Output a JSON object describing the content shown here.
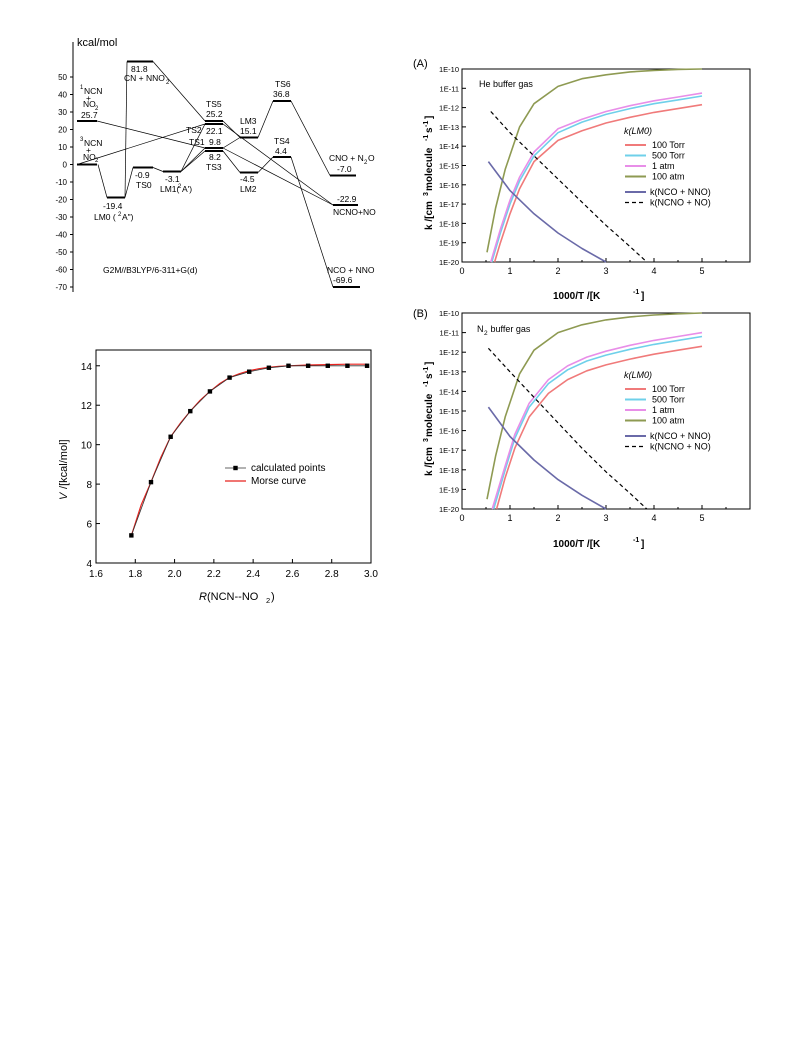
{
  "chart_data": [
    {
      "type": "energy-diagram",
      "ylabel": "kcal/mol",
      "yticks": [
        "50",
        "40",
        "30",
        "20",
        "10",
        "0",
        "-10",
        "-20",
        "-30",
        "-40",
        "-50",
        "-60",
        "-70"
      ],
      "method": "G2M//B3LYP/6-311+G(d)",
      "states": [
        {
          "label": "CN + NNO2",
          "energy": 81.8,
          "value_text": "81.8",
          "label_text": "CN + NNO",
          "label_sub": "2"
        },
        {
          "label": "1NCN + NO2",
          "energy": 25.7,
          "value_text": "25.7"
        },
        {
          "label": "3NCN + NO2",
          "energy": 0.0
        },
        {
          "label": "LM0 (2A\")",
          "energy": -19.4,
          "value_text": "-19.4",
          "label_text": "LM0 (",
          "label_sup": "2",
          "label_tail": "A\")"
        },
        {
          "label": "TS0",
          "energy": -0.9,
          "value_text": "-0.9"
        },
        {
          "label": "LM1(2A')",
          "energy": -3.1,
          "value_text": "-3.1",
          "label_text": "LM1(",
          "label_sup": "2",
          "label_tail": "A')"
        },
        {
          "label": "TS5",
          "energy": 25.2,
          "value_text": "25.2"
        },
        {
          "label": "TS2",
          "energy": 22.1,
          "value_text": "22.1"
        },
        {
          "label": "TS1",
          "energy": 9.8,
          "value_text": "9.8"
        },
        {
          "label": "TS3",
          "energy": 8.2,
          "value_text": "8.2"
        },
        {
          "label": "LM3",
          "energy": 15.1,
          "value_text": "15.1"
        },
        {
          "label": "LM2",
          "energy": -4.5,
          "value_text": "-4.5"
        },
        {
          "label": "TS6",
          "energy": 36.8,
          "value_text": "36.8"
        },
        {
          "label": "TS4",
          "energy": 4.4,
          "value_text": "4.4"
        },
        {
          "label": "CNO + N2O",
          "energy": -7.0,
          "value_text": "-7.0",
          "label_text": "CNO + N",
          "label_sub": "2",
          "label_tail": "O"
        },
        {
          "label": "NCNO+NO",
          "energy": -22.9,
          "value_text": "-22.9"
        },
        {
          "label": "NCO + NNO",
          "energy": -69.6,
          "value_text": "-69.6"
        }
      ],
      "reactant_labels": {
        "singlet": {
          "sup": "1",
          "line1": "NCN",
          "plus": "+",
          "line2": "NO",
          "sub": "2"
        },
        "triplet": {
          "sup": "3",
          "line1": "NCN",
          "plus": "+",
          "line2": "NO",
          "sub": "2"
        }
      }
    },
    {
      "type": "line",
      "panel": "(A)",
      "annotation": "He buffer gas",
      "xlabel": "1000/T  /[K",
      "xlabel_sup": "-1",
      "xlabel_tail": "]",
      "ylabel": "k /[cm",
      "ylabel_sup1": "3",
      "ylabel_mid": "molecule",
      "ylabel_sup2": "-1",
      "ylabel_s": "s",
      "ylabel_sup3": "-1",
      "ylabel_tail": "]",
      "xlim": [
        0,
        6
      ],
      "xticks": [
        "0",
        "1",
        "2",
        "3",
        "4",
        "5"
      ],
      "ylog": true,
      "yticks": [
        "1E-10",
        "1E-11",
        "1E-12",
        "1E-13",
        "1E-14",
        "1E-15",
        "1E-16",
        "1E-17",
        "1E-18",
        "1E-19",
        "1E-20"
      ],
      "legend_title": "k(LM0)",
      "series": [
        {
          "name": "100 Torr",
          "color": "#f07a7a",
          "x": [
            0.68,
            0.8,
            1.0,
            1.2,
            1.5,
            2,
            2.5,
            3,
            3.5,
            4,
            4.5,
            5
          ],
          "logy": [
            -20,
            -19,
            -17.5,
            -16.2,
            -14.8,
            -13.7,
            -13.2,
            -12.8,
            -12.5,
            -12.25,
            -12.05,
            -11.85
          ]
        },
        {
          "name": "500 Torr",
          "color": "#6fd0ea",
          "x": [
            0.62,
            0.8,
            1.0,
            1.2,
            1.5,
            2,
            2.5,
            3,
            3.5,
            4,
            4.5,
            5
          ],
          "logy": [
            -20,
            -18.5,
            -17,
            -15.8,
            -14.5,
            -13.3,
            -12.75,
            -12.35,
            -12.05,
            -11.8,
            -11.6,
            -11.4
          ]
        },
        {
          "name": "1 atm",
          "color": "#e88ee8",
          "x": [
            0.6,
            0.8,
            1.0,
            1.2,
            1.5,
            2,
            2.5,
            3,
            3.5,
            4,
            4.5,
            5
          ],
          "logy": [
            -20,
            -18.3,
            -16.8,
            -15.6,
            -14.3,
            -13.1,
            -12.6,
            -12.2,
            -11.9,
            -11.65,
            -11.45,
            -11.25
          ]
        },
        {
          "name": "100 atm",
          "color": "#8e9a52",
          "x": [
            0.52,
            0.7,
            0.9,
            1.2,
            1.5,
            2,
            2.5,
            3,
            3.5,
            4,
            4.5,
            5
          ],
          "logy": [
            -19.5,
            -17.2,
            -15.2,
            -13,
            -11.8,
            -10.9,
            -10.5,
            -10.3,
            -10.15,
            -10.07,
            -10.02,
            -10
          ]
        },
        {
          "name": "k(NCO + NNO)",
          "color": "#6a6aa8",
          "x": [
            0.55,
            1,
            1.5,
            2,
            2.5,
            3
          ],
          "logy": [
            -14.8,
            -16.3,
            -17.5,
            -18.5,
            -19.3,
            -20
          ]
        },
        {
          "name": "k(NCNO + NO)",
          "color": "#000000",
          "dashed": true,
          "x": [
            0.6,
            1,
            1.5,
            2,
            2.5,
            3,
            3.5,
            3.85
          ],
          "logy": [
            -12.2,
            -13.3,
            -14.5,
            -15.7,
            -16.9,
            -18.1,
            -19.2,
            -20
          ]
        }
      ]
    },
    {
      "type": "line",
      "panel": "(B)",
      "annotation_main": "N",
      "annotation_sub": "2",
      "annotation_tail": " buffer gas",
      "xlabel": "1000/T  /[K",
      "xlabel_sup": "-1",
      "xlabel_tail": "]",
      "xlim": [
        0,
        6
      ],
      "xticks": [
        "0",
        "1",
        "2",
        "3",
        "4",
        "5"
      ],
      "ylog": true,
      "yticks": [
        "1E-10",
        "1E-11",
        "1E-12",
        "1E-13",
        "1E-14",
        "1E-15",
        "1E-16",
        "1E-17",
        "1E-18",
        "1E-19",
        "1E-20"
      ],
      "legend_title": "k(LM0)",
      "series": [
        {
          "name": "100 Torr",
          "color": "#f07a7a",
          "x": [
            0.72,
            0.9,
            1.1,
            1.4,
            1.8,
            2.2,
            2.6,
            3,
            3.5,
            4,
            4.5,
            5
          ],
          "logy": [
            -20,
            -18.4,
            -16.9,
            -15.3,
            -14.1,
            -13.4,
            -12.95,
            -12.65,
            -12.35,
            -12.1,
            -11.9,
            -11.7
          ]
        },
        {
          "name": "500 Torr",
          "color": "#6fd0ea",
          "x": [
            0.66,
            0.9,
            1.1,
            1.4,
            1.8,
            2.2,
            2.6,
            3,
            3.5,
            4,
            4.5,
            5
          ],
          "logy": [
            -20,
            -18,
            -16.4,
            -14.8,
            -13.6,
            -12.9,
            -12.45,
            -12.15,
            -11.85,
            -11.6,
            -11.4,
            -11.2
          ]
        },
        {
          "name": "1 atm",
          "color": "#e88ee8",
          "x": [
            0.63,
            0.9,
            1.1,
            1.4,
            1.8,
            2.2,
            2.6,
            3,
            3.5,
            4,
            4.5,
            5
          ],
          "logy": [
            -20,
            -17.8,
            -16.2,
            -14.6,
            -13.4,
            -12.7,
            -12.25,
            -11.95,
            -11.65,
            -11.4,
            -11.2,
            -11
          ]
        },
        {
          "name": "100 atm",
          "color": "#8e9a52",
          "x": [
            0.52,
            0.7,
            0.9,
            1.2,
            1.5,
            2,
            2.5,
            3,
            3.5,
            4,
            4.5,
            5
          ],
          "logy": [
            -19.5,
            -17.3,
            -15.3,
            -13.1,
            -11.9,
            -11,
            -10.6,
            -10.35,
            -10.2,
            -10.1,
            -10.04,
            -10
          ]
        },
        {
          "name": "k(NCO + NNO)",
          "color": "#6a6aa8",
          "x": [
            0.55,
            1,
            1.5,
            2,
            2.5,
            3
          ],
          "logy": [
            -14.8,
            -16.3,
            -17.5,
            -18.5,
            -19.3,
            -20
          ]
        },
        {
          "name": "k(NCNO + NO)",
          "color": "#000000",
          "dashed": true,
          "x": [
            0.55,
            1,
            1.5,
            2,
            2.5,
            3,
            3.5,
            3.85
          ],
          "logy": [
            -11.8,
            -13,
            -14.3,
            -15.6,
            -16.9,
            -18.1,
            -19.2,
            -20
          ]
        }
      ]
    },
    {
      "type": "scatter",
      "xlabel_main": "R",
      "xlabel_rest": "(NCN--NO",
      "xlabel_sub": "2",
      "xlabel_tail": ")",
      "ylabel_main": "V",
      "ylabel_rest": " /[kcal/mol]",
      "xlim": [
        1.6,
        3.0
      ],
      "ylim": [
        4,
        14.8
      ],
      "xticks": [
        "1.6",
        "1.8",
        "2.0",
        "2.2",
        "2.4",
        "2.6",
        "2.8",
        "3.0"
      ],
      "yticks": [
        "4",
        "6",
        "8",
        "10",
        "12",
        "14"
      ],
      "series": [
        {
          "name": "calculated points",
          "color": "#000000",
          "x": [
            1.78,
            1.88,
            1.98,
            2.08,
            2.18,
            2.28,
            2.38,
            2.48,
            2.58,
            2.68,
            2.78,
            2.88,
            2.98
          ],
          "y": [
            5.4,
            8.1,
            10.4,
            11.7,
            12.7,
            13.4,
            13.7,
            13.9,
            14.0,
            14.0,
            14.0,
            14.0,
            14.0
          ]
        },
        {
          "name": "Morse curve",
          "color": "#e8231f",
          "x": [
            1.78,
            1.83,
            1.88,
            1.93,
            1.98,
            2.03,
            2.08,
            2.13,
            2.18,
            2.23,
            2.28,
            2.33,
            2.38,
            2.43,
            2.48,
            2.53,
            2.58,
            2.68,
            2.78,
            2.88,
            2.98
          ],
          "y": [
            5.4,
            6.95,
            8.1,
            9.35,
            10.4,
            11.1,
            11.7,
            12.25,
            12.7,
            13.1,
            13.4,
            13.6,
            13.75,
            13.85,
            13.92,
            13.97,
            14.0,
            14.04,
            14.06,
            14.08,
            14.08
          ]
        }
      ]
    }
  ]
}
